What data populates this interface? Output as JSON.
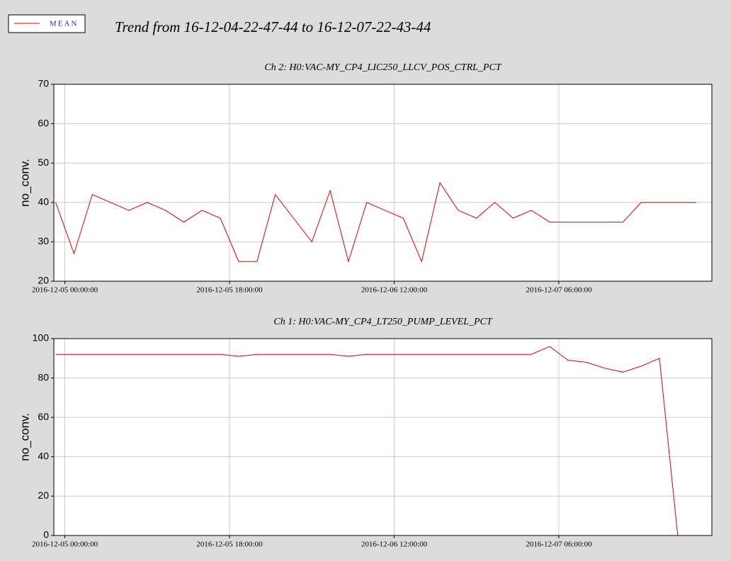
{
  "title": "Trend from 16-12-04-22-47-44 to 16-12-07-22-43-44",
  "chart_data": [
    {
      "type": "line",
      "title": "Ch 2: H0:VAC-MY_CP4_LIC250_LLCV_POS_CTRL_PCT",
      "y_label": "no_conv.",
      "x": [
        "2016-12-04 23:00:00",
        "2016-12-05 01:00:00",
        "2016-12-05 03:00:00",
        "2016-12-05 05:00:00",
        "2016-12-05 07:00:00",
        "2016-12-05 09:00:00",
        "2016-12-05 11:00:00",
        "2016-12-05 13:00:00",
        "2016-12-05 15:00:00",
        "2016-12-05 17:00:00",
        "2016-12-05 19:00:00",
        "2016-12-05 21:00:00",
        "2016-12-05 23:00:00",
        "2016-12-06 01:00:00",
        "2016-12-06 03:00:00",
        "2016-12-06 05:00:00",
        "2016-12-06 07:00:00",
        "2016-12-06 09:00:00",
        "2016-12-06 11:00:00",
        "2016-12-06 13:00:00",
        "2016-12-06 15:00:00",
        "2016-12-06 17:00:00",
        "2016-12-06 19:00:00",
        "2016-12-06 21:00:00",
        "2016-12-06 23:00:00",
        "2016-12-07 01:00:00",
        "2016-12-07 03:00:00",
        "2016-12-07 05:00:00",
        "2016-12-07 07:00:00",
        "2016-12-07 09:00:00",
        "2016-12-07 11:00:00",
        "2016-12-07 13:00:00",
        "2016-12-07 15:00:00",
        "2016-12-07 17:00:00",
        "2016-12-07 19:00:00",
        "2016-12-07 21:00:00"
      ],
      "series": [
        {
          "name": "MEAN",
          "color": "#e00000",
          "values": [
            40,
            27,
            42,
            40,
            38,
            40,
            38,
            35,
            38,
            36,
            25,
            25,
            42,
            36,
            30,
            43,
            25,
            40,
            38,
            36,
            25,
            45,
            38,
            36,
            40,
            36,
            38,
            35,
            35,
            35,
            35,
            35,
            40,
            40,
            40,
            40
          ]
        }
      ],
      "xlim": [
        "2016-12-04 22:47:44",
        "2016-12-07 22:43:44"
      ],
      "xticks": [
        "2016-12-05 00:00:00",
        "2016-12-05 18:00:00",
        "2016-12-06 12:00:00",
        "2016-12-07 06:00:00"
      ],
      "ylim": [
        20,
        70
      ],
      "yticks": [
        20,
        30,
        40,
        50,
        60,
        70
      ],
      "grid": true
    },
    {
      "type": "line",
      "title": "Ch 1: H0:VAC-MY_CP4_LT250_PUMP_LEVEL_PCT",
      "y_label": "no_conv.",
      "x": [
        "2016-12-04 23:00:00",
        "2016-12-05 01:00:00",
        "2016-12-05 03:00:00",
        "2016-12-05 05:00:00",
        "2016-12-05 07:00:00",
        "2016-12-05 09:00:00",
        "2016-12-05 11:00:00",
        "2016-12-05 13:00:00",
        "2016-12-05 15:00:00",
        "2016-12-05 17:00:00",
        "2016-12-05 19:00:00",
        "2016-12-05 21:00:00",
        "2016-12-05 23:00:00",
        "2016-12-06 01:00:00",
        "2016-12-06 03:00:00",
        "2016-12-06 05:00:00",
        "2016-12-06 07:00:00",
        "2016-12-06 09:00:00",
        "2016-12-06 11:00:00",
        "2016-12-06 13:00:00",
        "2016-12-06 15:00:00",
        "2016-12-06 17:00:00",
        "2016-12-06 19:00:00",
        "2016-12-06 21:00:00",
        "2016-12-06 23:00:00",
        "2016-12-07 01:00:00",
        "2016-12-07 03:00:00",
        "2016-12-07 05:00:00",
        "2016-12-07 07:00:00",
        "2016-12-07 09:00:00",
        "2016-12-07 11:00:00",
        "2016-12-07 13:00:00",
        "2016-12-07 15:00:00",
        "2016-12-07 17:00:00",
        "2016-12-07 19:00:00",
        "2016-12-07 21:00:00"
      ],
      "series": [
        {
          "name": "MEAN",
          "color": "#e00000",
          "values": [
            92,
            92,
            92,
            92,
            92,
            92,
            92,
            92,
            92,
            92,
            91,
            92,
            92,
            92,
            92,
            92,
            91,
            92,
            92,
            92,
            92,
            92,
            92,
            92,
            92,
            92,
            92,
            96,
            89,
            88,
            85,
            83,
            86,
            90,
            0,
            null
          ]
        }
      ],
      "xlim": [
        "2016-12-04 22:47:44",
        "2016-12-07 22:43:44"
      ],
      "xticks": [
        "2016-12-05 00:00:00",
        "2016-12-05 18:00:00",
        "2016-12-06 12:00:00",
        "2016-12-07 06:00:00"
      ],
      "ylim": [
        0,
        100
      ],
      "yticks": [
        0,
        20,
        40,
        60,
        80,
        100
      ],
      "grid": true
    }
  ]
}
